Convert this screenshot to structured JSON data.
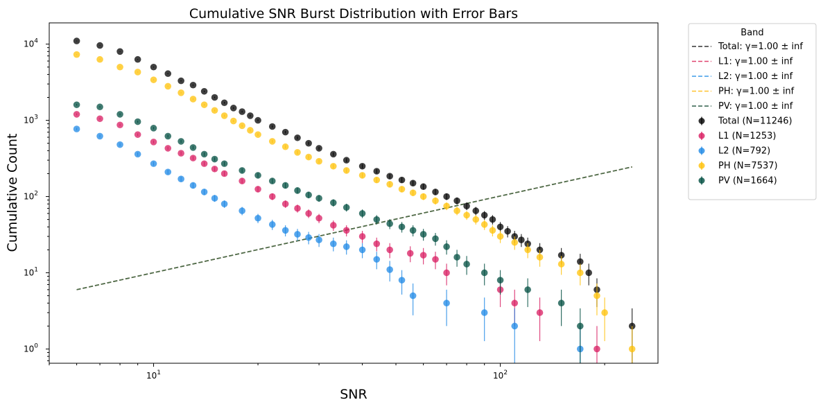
{
  "chart_data": {
    "type": "scatter",
    "title": "Cumulative SNR Burst Distribution with Error Bars",
    "xlabel": "SNR",
    "ylabel": "Cumulative Count",
    "xscale": "log",
    "yscale": "log",
    "xlim": [
      5.0,
      285
    ],
    "ylim": [
      0.65,
      19000
    ],
    "grid": false,
    "legend_title": "Band",
    "legend_placement": "outside-right-top",
    "x_ticks": [
      {
        "value": 10,
        "base": "10",
        "exp": "1"
      },
      {
        "value": 100,
        "base": "10",
        "exp": "2"
      }
    ],
    "y_ticks": [
      {
        "value": 1,
        "base": "10",
        "exp": "0"
      },
      {
        "value": 10,
        "base": "10",
        "exp": "1"
      },
      {
        "value": 100,
        "base": "10",
        "exp": "2"
      },
      {
        "value": 1000,
        "base": "10",
        "exp": "3"
      },
      {
        "value": 10000,
        "base": "10",
        "exp": "4"
      }
    ],
    "fit_lines": [
      {
        "label": "Total: γ=1.00 ± inf",
        "color": "#333333",
        "x": [
          6,
          240
        ],
        "y": [
          6,
          245
        ]
      },
      {
        "label": "L1: γ=1.00 ± inf",
        "color": "#e0436e",
        "x": [
          6,
          240
        ],
        "y": [
          6,
          245
        ]
      },
      {
        "label": "L2: γ=1.00 ± inf",
        "color": "#3d9be9",
        "x": [
          6,
          240
        ],
        "y": [
          6,
          245
        ]
      },
      {
        "label": "PH: γ=1.00 ± inf",
        "color": "#ffc22e",
        "x": [
          6,
          240
        ],
        "y": [
          6,
          245
        ]
      },
      {
        "label": "PV: γ=1.00 ± inf",
        "color": "#2e5e4a",
        "x": [
          6,
          240
        ],
        "y": [
          6,
          245
        ]
      }
    ],
    "series": [
      {
        "name": "Total (N=11246)",
        "color": "#000000",
        "x": [
          6,
          7,
          8,
          9,
          10,
          11,
          12,
          13,
          14,
          15,
          16,
          17,
          18,
          19,
          20,
          22,
          24,
          26,
          28,
          30,
          33,
          36,
          40,
          44,
          48,
          52,
          56,
          60,
          65,
          70,
          75,
          80,
          85,
          90,
          95,
          100,
          105,
          110,
          115,
          120,
          130,
          150,
          170,
          180,
          190,
          240
        ],
        "y": [
          11000,
          9600,
          8000,
          6300,
          5000,
          4100,
          3300,
          2900,
          2400,
          2000,
          1700,
          1450,
          1300,
          1150,
          1000,
          830,
          700,
          590,
          500,
          430,
          360,
          300,
          250,
          215,
          185,
          165,
          150,
          135,
          115,
          100,
          88,
          75,
          65,
          57,
          50,
          40,
          35,
          30,
          27,
          24,
          20,
          17,
          14,
          10,
          6,
          2
        ]
      },
      {
        "name": "L1 (N=1253)",
        "color": "#d81b60",
        "x": [
          6,
          7,
          8,
          9,
          10,
          11,
          12,
          13,
          14,
          15,
          16,
          18,
          20,
          22,
          24,
          26,
          28,
          30,
          33,
          36,
          40,
          44,
          48,
          55,
          60,
          65,
          70,
          100,
          110,
          130,
          190
        ],
        "y": [
          1200,
          1050,
          870,
          650,
          520,
          430,
          370,
          320,
          270,
          230,
          200,
          160,
          125,
          100,
          80,
          70,
          60,
          52,
          42,
          36,
          30,
          24,
          20,
          18,
          17,
          15,
          10,
          6,
          4,
          3,
          1
        ]
      },
      {
        "name": "L2 (N=792)",
        "color": "#1e88e5",
        "x": [
          6,
          7,
          8,
          9,
          10,
          11,
          12,
          13,
          14,
          15,
          16,
          18,
          20,
          22,
          24,
          26,
          28,
          30,
          33,
          36,
          40,
          44,
          48,
          52,
          56,
          70,
          90,
          110,
          170
        ],
        "y": [
          770,
          620,
          480,
          360,
          270,
          210,
          170,
          140,
          115,
          95,
          80,
          65,
          52,
          43,
          36,
          32,
          29,
          27,
          24,
          22,
          20,
          15,
          11,
          8,
          5,
          4,
          3,
          2,
          1
        ]
      },
      {
        "name": "PH (N=7537)",
        "color": "#ffc107",
        "x": [
          6,
          7,
          8,
          9,
          10,
          11,
          12,
          13,
          14,
          15,
          16,
          17,
          18,
          19,
          20,
          22,
          24,
          26,
          28,
          30,
          33,
          36,
          40,
          44,
          48,
          52,
          56,
          60,
          65,
          70,
          75,
          80,
          85,
          90,
          95,
          100,
          110,
          120,
          130,
          150,
          170,
          190,
          200,
          240
        ],
        "y": [
          7300,
          6300,
          5000,
          4300,
          3400,
          2800,
          2300,
          1900,
          1600,
          1350,
          1150,
          980,
          850,
          740,
          650,
          530,
          450,
          380,
          330,
          290,
          250,
          220,
          190,
          165,
          145,
          125,
          112,
          100,
          88,
          75,
          65,
          57,
          50,
          43,
          36,
          30,
          25,
          20,
          16,
          13,
          10,
          5,
          3,
          1
        ]
      },
      {
        "name": "PV (N=1664)",
        "color": "#004d40",
        "x": [
          6,
          7,
          8,
          9,
          10,
          11,
          12,
          13,
          14,
          15,
          16,
          18,
          20,
          22,
          24,
          26,
          28,
          30,
          33,
          36,
          40,
          44,
          48,
          52,
          56,
          60,
          65,
          70,
          75,
          80,
          90,
          100,
          120,
          150,
          170
        ],
        "y": [
          1600,
          1500,
          1200,
          960,
          790,
          620,
          530,
          440,
          360,
          310,
          270,
          220,
          190,
          160,
          140,
          120,
          105,
          95,
          83,
          72,
          60,
          50,
          44,
          40,
          36,
          32,
          28,
          22,
          16,
          13,
          10,
          8,
          6,
          4,
          2
        ]
      }
    ]
  }
}
